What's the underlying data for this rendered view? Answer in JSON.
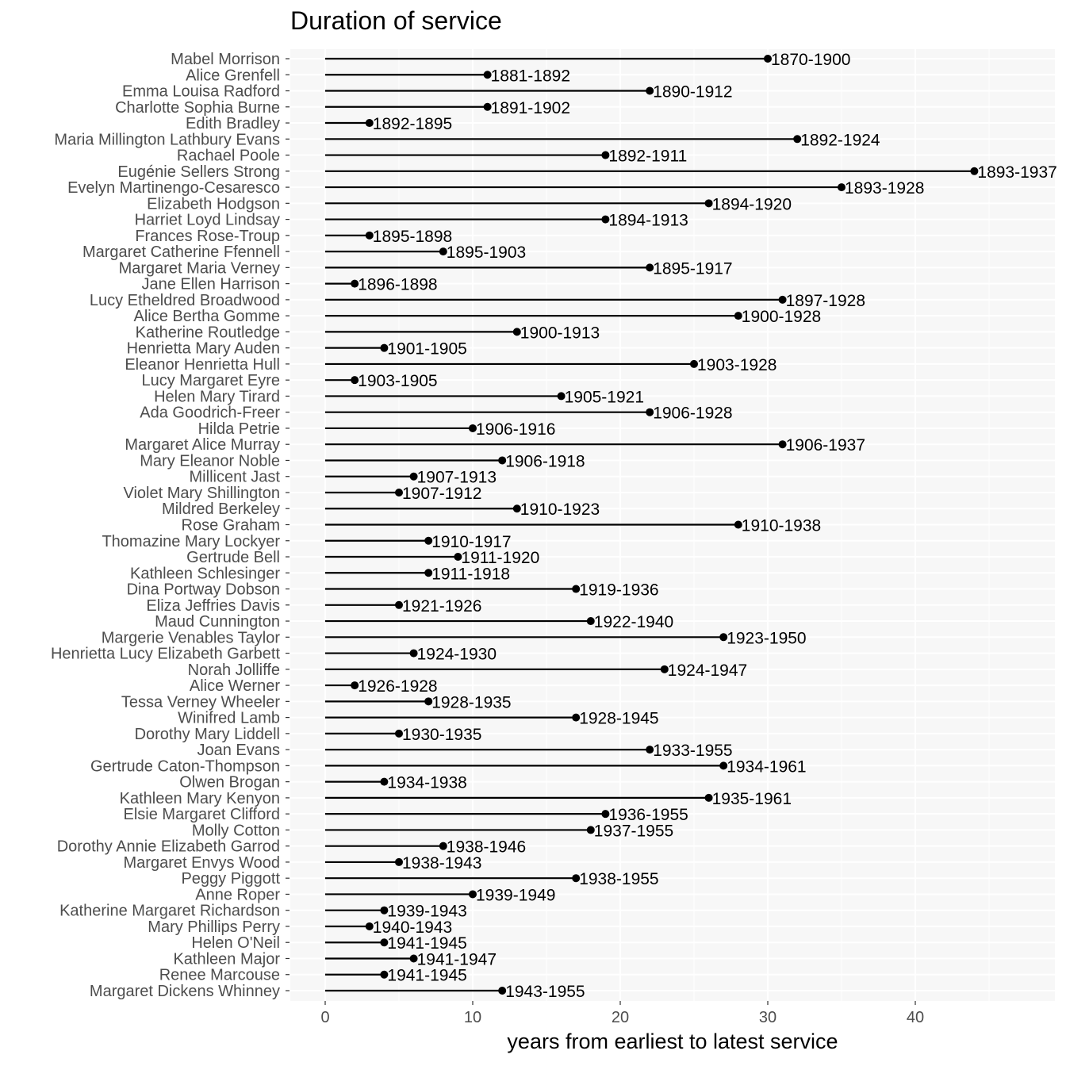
{
  "chart_data": {
    "type": "lollipop",
    "title": "Duration of service",
    "xlabel": "years from earliest to latest service",
    "ylabel": "",
    "xlim": [
      -2.2,
      49.2
    ],
    "xticks": [
      0,
      10,
      20,
      30,
      40
    ],
    "grid": true,
    "background": "#f7f7f7",
    "grid_color": "#ffffff",
    "line_color": "#000000",
    "people": [
      {
        "name": "Mabel Morrison",
        "years": 30,
        "label": "1870-1900"
      },
      {
        "name": "Alice Grenfell",
        "years": 11,
        "label": "1881-1892"
      },
      {
        "name": "Emma Louisa Radford",
        "years": 22,
        "label": "1890-1912"
      },
      {
        "name": "Charlotte Sophia Burne",
        "years": 11,
        "label": "1891-1902"
      },
      {
        "name": "Edith Bradley",
        "years": 3,
        "label": "1892-1895"
      },
      {
        "name": "Maria Millington Lathbury Evans",
        "years": 32,
        "label": "1892-1924"
      },
      {
        "name": "Rachael Poole",
        "years": 19,
        "label": "1892-1911"
      },
      {
        "name": "Eugénie Sellers Strong",
        "years": 44,
        "label": "1893-1937"
      },
      {
        "name": "Evelyn Martinengo-Cesaresco",
        "years": 35,
        "label": "1893-1928"
      },
      {
        "name": "Elizabeth Hodgson",
        "years": 26,
        "label": "1894-1920"
      },
      {
        "name": "Harriet Loyd Lindsay",
        "years": 19,
        "label": "1894-1913"
      },
      {
        "name": "Frances Rose-Troup",
        "years": 3,
        "label": "1895-1898"
      },
      {
        "name": "Margaret Catherine Ffennell",
        "years": 8,
        "label": "1895-1903"
      },
      {
        "name": "Margaret Maria Verney",
        "years": 22,
        "label": "1895-1917"
      },
      {
        "name": "Jane Ellen Harrison",
        "years": 2,
        "label": "1896-1898"
      },
      {
        "name": "Lucy Etheldred Broadwood",
        "years": 31,
        "label": "1897-1928"
      },
      {
        "name": "Alice Bertha Gomme",
        "years": 28,
        "label": "1900-1928"
      },
      {
        "name": "Katherine Routledge",
        "years": 13,
        "label": "1900-1913"
      },
      {
        "name": "Henrietta Mary Auden",
        "years": 4,
        "label": "1901-1905"
      },
      {
        "name": "Eleanor Henrietta Hull",
        "years": 25,
        "label": "1903-1928"
      },
      {
        "name": "Lucy Margaret Eyre",
        "years": 2,
        "label": "1903-1905"
      },
      {
        "name": "Helen Mary Tirard",
        "years": 16,
        "label": "1905-1921"
      },
      {
        "name": "Ada Goodrich-Freer",
        "years": 22,
        "label": "1906-1928"
      },
      {
        "name": "Hilda Petrie",
        "years": 10,
        "label": "1906-1916"
      },
      {
        "name": "Margaret Alice Murray",
        "years": 31,
        "label": "1906-1937"
      },
      {
        "name": "Mary Eleanor Noble",
        "years": 12,
        "label": "1906-1918"
      },
      {
        "name": "Millicent Jast",
        "years": 6,
        "label": "1907-1913"
      },
      {
        "name": "Violet Mary Shillington",
        "years": 5,
        "label": "1907-1912"
      },
      {
        "name": "Mildred Berkeley",
        "years": 13,
        "label": "1910-1923"
      },
      {
        "name": "Rose Graham",
        "years": 28,
        "label": "1910-1938"
      },
      {
        "name": "Thomazine Mary Lockyer",
        "years": 7,
        "label": "1910-1917"
      },
      {
        "name": "Gertrude Bell",
        "years": 9,
        "label": "1911-1920"
      },
      {
        "name": "Kathleen Schlesinger",
        "years": 7,
        "label": "1911-1918"
      },
      {
        "name": "Dina Portway Dobson",
        "years": 17,
        "label": "1919-1936"
      },
      {
        "name": "Eliza Jeffries Davis",
        "years": 5,
        "label": "1921-1926"
      },
      {
        "name": "Maud Cunnington",
        "years": 18,
        "label": "1922-1940"
      },
      {
        "name": "Margerie Venables Taylor",
        "years": 27,
        "label": "1923-1950"
      },
      {
        "name": "Henrietta Lucy Elizabeth Garbett",
        "years": 6,
        "label": "1924-1930"
      },
      {
        "name": "Norah Jolliffe",
        "years": 23,
        "label": "1924-1947"
      },
      {
        "name": "Alice Werner",
        "years": 2,
        "label": "1926-1928"
      },
      {
        "name": "Tessa Verney Wheeler",
        "years": 7,
        "label": "1928-1935"
      },
      {
        "name": "Winifred Lamb",
        "years": 17,
        "label": "1928-1945"
      },
      {
        "name": "Dorothy Mary Liddell",
        "years": 5,
        "label": "1930-1935"
      },
      {
        "name": "Joan Evans",
        "years": 22,
        "label": "1933-1955"
      },
      {
        "name": "Gertrude Caton-Thompson",
        "years": 27,
        "label": "1934-1961"
      },
      {
        "name": "Olwen Brogan",
        "years": 4,
        "label": "1934-1938"
      },
      {
        "name": "Kathleen Mary Kenyon",
        "years": 26,
        "label": "1935-1961"
      },
      {
        "name": "Elsie Margaret Clifford",
        "years": 19,
        "label": "1936-1955"
      },
      {
        "name": "Molly Cotton",
        "years": 18,
        "label": "1937-1955"
      },
      {
        "name": "Dorothy Annie Elizabeth Garrod",
        "years": 8,
        "label": "1938-1946"
      },
      {
        "name": "Margaret Envys Wood",
        "years": 5,
        "label": "1938-1943"
      },
      {
        "name": "Peggy Piggott",
        "years": 17,
        "label": "1938-1955"
      },
      {
        "name": "Anne Roper",
        "years": 10,
        "label": "1939-1949"
      },
      {
        "name": "Katherine Margaret Richardson",
        "years": 4,
        "label": "1939-1943"
      },
      {
        "name": "Mary Phillips Perry",
        "years": 3,
        "label": "1940-1943"
      },
      {
        "name": "Helen O'Neil",
        "years": 4,
        "label": "1941-1945"
      },
      {
        "name": "Kathleen Major",
        "years": 6,
        "label": "1941-1947"
      },
      {
        "name": "Renee Marcouse",
        "years": 4,
        "label": "1941-1945"
      },
      {
        "name": "Margaret Dickens Whinney",
        "years": 12,
        "label": "1943-1955"
      }
    ]
  }
}
